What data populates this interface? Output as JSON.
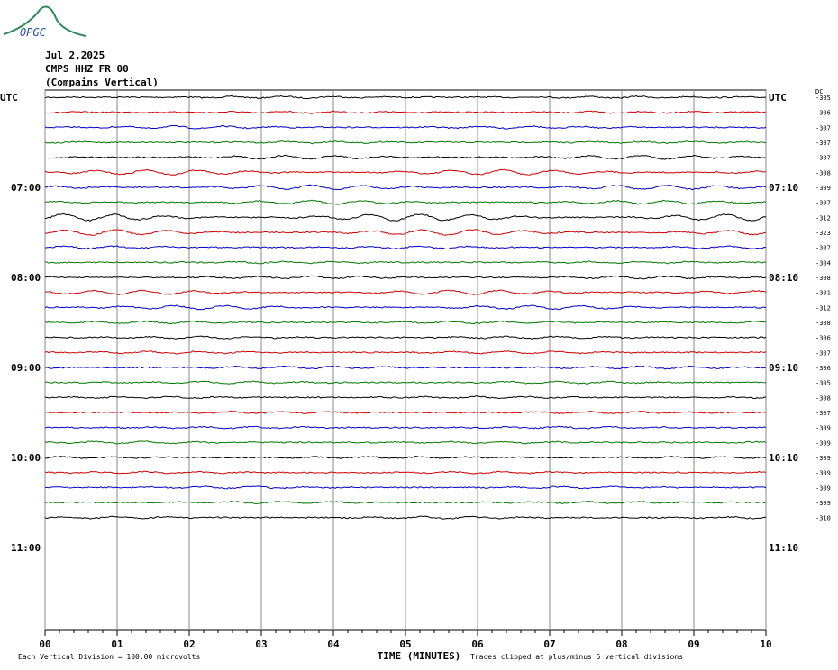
{
  "logo": "OPGC",
  "header": {
    "date": "Jul 2,2025",
    "station": "CMPS HHZ FR 00",
    "name": "(Compains Vertical)"
  },
  "left_labels": [
    "UTC",
    "07:00",
    "08:00",
    "09:00",
    "10:00",
    "11:00"
  ],
  "right_labels": [
    "UTC",
    "07:10",
    "08:10",
    "09:10",
    "10:10",
    "11:10"
  ],
  "dc_header": "DC",
  "dc_offsets": [
    "-305",
    "-306",
    "-307",
    "-307",
    "-307",
    "-308",
    "-309",
    "-307",
    "-312",
    "-323",
    "-307",
    "-304",
    "-308",
    "-301",
    "-312",
    "-308",
    "-306",
    "-307",
    "-306",
    "-305",
    "-308",
    "-307",
    "-309",
    "-309",
    "-309",
    "-309",
    "-309",
    "-309",
    "-310"
  ],
  "trace_colors": [
    "#000000",
    "#d00000",
    "#0000c8",
    "#007800"
  ],
  "x_ticks": [
    "00",
    "01",
    "02",
    "03",
    "04",
    "05",
    "06",
    "07",
    "08",
    "09",
    "10"
  ],
  "x_title": "TIME (MINUTES)",
  "footer": {
    "scale": "Each Vertical Division =  100.00 microvolts",
    "clip": "Traces clipped at plus/minus 5 vertical divisions"
  }
}
